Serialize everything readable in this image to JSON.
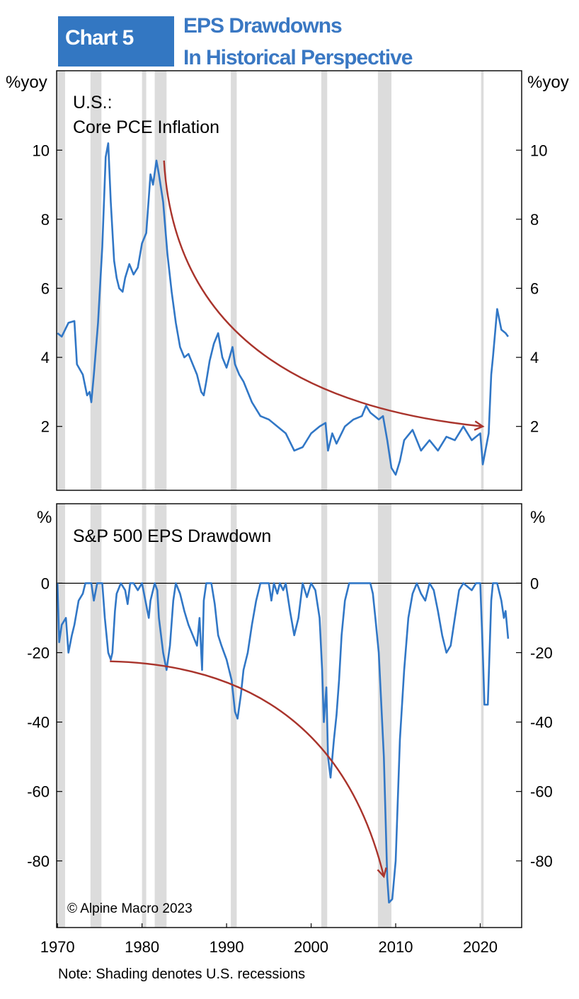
{
  "header": {
    "chart_number": "Chart 5",
    "title_line1": "EPS Drawdowns",
    "title_line2": "In Historical Perspective"
  },
  "chart_data": [
    {
      "type": "line",
      "title": "U.S.:",
      "subtitle": "Core PCE Inflation",
      "ylabel_left": "%yoy",
      "ylabel_right": "%yoy",
      "ylim": [
        0.15,
        12.3
      ],
      "xlim": [
        1969.9,
        2024.9
      ],
      "yticks": [
        2,
        4,
        6,
        8,
        10
      ],
      "ytick_labels": [
        "2",
        "4",
        "6",
        "8",
        "10"
      ],
      "series_color": "#3177c6",
      "x": [
        1970.0,
        1970.5,
        1971.3,
        1972.0,
        1972.3,
        1973.0,
        1973.5,
        1973.8,
        1974.0,
        1974.3,
        1974.8,
        1975.3,
        1975.7,
        1976.0,
        1976.3,
        1976.7,
        1977.0,
        1977.3,
        1977.7,
        1978.0,
        1978.5,
        1979.0,
        1979.5,
        1980.0,
        1980.5,
        1981.0,
        1981.3,
        1981.7,
        1982.0,
        1982.5,
        1983.0,
        1983.5,
        1984.0,
        1984.5,
        1985.0,
        1985.5,
        1986.0,
        1986.5,
        1987.0,
        1987.3,
        1987.6,
        1988.0,
        1988.5,
        1989.0,
        1989.5,
        1990.0,
        1990.7,
        1991.0,
        1991.5,
        1992.0,
        1993.0,
        1994.0,
        1995.0,
        1996.0,
        1997.0,
        1998.0,
        1999.0,
        2000.0,
        2001.0,
        2001.7,
        2002.0,
        2002.5,
        2003.0,
        2004.0,
        2005.0,
        2006.0,
        2006.5,
        2007.0,
        2008.0,
        2008.5,
        2009.0,
        2009.5,
        2010.0,
        2010.5,
        2011.0,
        2012.0,
        2013.0,
        2014.0,
        2015.0,
        2016.0,
        2017.0,
        2018.0,
        2019.0,
        2019.5,
        2020.0,
        2020.3,
        2021.0,
        2021.3,
        2021.5,
        2022.0,
        2022.5,
        2023.0,
        2023.3
      ],
      "values": [
        4.7,
        4.6,
        5.0,
        5.05,
        3.8,
        3.5,
        2.9,
        3.0,
        2.7,
        3.5,
        5.0,
        7.2,
        9.8,
        10.2,
        8.5,
        6.8,
        6.3,
        6.0,
        5.9,
        6.3,
        6.7,
        6.4,
        6.6,
        7.3,
        7.6,
        9.3,
        9.0,
        9.7,
        9.3,
        8.5,
        7.0,
        5.9,
        5.0,
        4.3,
        4.0,
        4.1,
        3.8,
        3.5,
        3.0,
        2.9,
        3.3,
        3.9,
        4.4,
        4.7,
        4.0,
        3.7,
        4.3,
        3.8,
        3.5,
        3.3,
        2.7,
        2.3,
        2.2,
        2.0,
        1.8,
        1.3,
        1.4,
        1.8,
        2.0,
        2.1,
        1.3,
        1.8,
        1.5,
        2.0,
        2.2,
        2.3,
        2.6,
        2.4,
        2.2,
        2.3,
        1.6,
        0.8,
        0.6,
        1.0,
        1.6,
        1.9,
        1.3,
        1.6,
        1.3,
        1.7,
        1.6,
        2.0,
        1.6,
        1.7,
        1.8,
        0.9,
        1.8,
        3.5,
        4.0,
        5.4,
        4.8,
        4.7,
        4.6
      ],
      "annotation_arrow": {
        "from": [
          1982.6,
          9.7
        ],
        "control": [
          1984.2,
          2.9
        ],
        "to": [
          2020.3,
          2.0
        ],
        "color": "#a9342c"
      }
    },
    {
      "type": "line",
      "title": "S&P 500 EPS Drawdown",
      "ylabel_left": "%",
      "ylabel_right": "%",
      "ylim": [
        -99.2,
        22.9
      ],
      "xlim": [
        1969.9,
        2024.9
      ],
      "yticks": [
        0,
        -20,
        -40,
        -60,
        -80
      ],
      "ytick_labels": [
        "0",
        "-20",
        "-40",
        "-60",
        "-80"
      ],
      "xticks": [
        1970,
        1980,
        1990,
        2000,
        2010,
        2020
      ],
      "xtick_labels": [
        "1970",
        "1980",
        "1990",
        "2000",
        "2010",
        "2020"
      ],
      "series_color": "#3177c6",
      "x": [
        1970.0,
        1970.2,
        1970.5,
        1971.0,
        1971.3,
        1971.7,
        1972.0,
        1972.5,
        1973.0,
        1973.3,
        1974.0,
        1974.3,
        1974.7,
        1975.3,
        1975.6,
        1976.0,
        1976.3,
        1976.5,
        1976.8,
        1977.0,
        1977.5,
        1978.0,
        1978.3,
        1978.6,
        1979.0,
        1979.5,
        1980.0,
        1980.4,
        1980.8,
        1981.0,
        1981.5,
        1981.8,
        1982.0,
        1982.5,
        1982.9,
        1983.3,
        1983.7,
        1984.0,
        1984.5,
        1985.0,
        1985.5,
        1986.0,
        1986.5,
        1986.8,
        1987.1,
        1987.3,
        1987.6,
        1988.2,
        1988.6,
        1989.0,
        1989.4,
        1989.7,
        1990.0,
        1990.6,
        1991.0,
        1991.3,
        1991.7,
        1992.0,
        1992.5,
        1993.0,
        1993.5,
        1994.0,
        1995.0,
        1995.3,
        1995.6,
        1996.0,
        1996.3,
        1996.7,
        1997.0,
        1997.5,
        1998.0,
        1998.5,
        1999.0,
        1999.5,
        2000.0,
        2000.5,
        2001.0,
        2001.3,
        2001.5,
        2001.8,
        2002.0,
        2002.3,
        2002.7,
        2003.0,
        2003.3,
        2003.6,
        2004.0,
        2004.5,
        2005.0,
        2006.0,
        2007.0,
        2007.3,
        2007.6,
        2008.0,
        2008.3,
        2008.6,
        2009.0,
        2009.2,
        2009.6,
        2010.0,
        2010.5,
        2011.0,
        2011.5,
        2012.0,
        2012.5,
        2013.0,
        2013.5,
        2014.0,
        2014.5,
        2015.0,
        2015.5,
        2016.0,
        2016.5,
        2017.0,
        2017.5,
        2018.0,
        2019.0,
        2019.5,
        2020.0,
        2020.3,
        2020.5,
        2020.9,
        2021.3,
        2021.5,
        2022.0,
        2022.5,
        2022.8,
        2023.0,
        2023.3
      ],
      "values": [
        0,
        -17,
        -12,
        -10,
        -20,
        -15,
        -12,
        -5,
        -3,
        0,
        0,
        -5,
        0,
        0,
        -10,
        -20,
        -22,
        -20,
        -8,
        -3,
        0,
        -2,
        -6,
        0,
        0,
        -2,
        0,
        -5,
        -10,
        -5,
        0,
        -2,
        -10,
        -20,
        -25,
        -18,
        -5,
        0,
        -3,
        -8,
        -12,
        -15,
        -18,
        -10,
        -25,
        -5,
        0,
        0,
        -6,
        -15,
        -18,
        -20,
        -22,
        -28,
        -37,
        -39,
        -32,
        -25,
        -20,
        -12,
        -5,
        0,
        0,
        -5,
        0,
        -3,
        0,
        -2,
        0,
        -8,
        -15,
        -10,
        0,
        -4,
        0,
        -2,
        -10,
        -25,
        -40,
        -30,
        -50,
        -56,
        -45,
        -38,
        -28,
        -15,
        -5,
        0,
        0,
        0,
        0,
        -3,
        -10,
        -20,
        -35,
        -50,
        -85,
        -92,
        -91,
        -80,
        -45,
        -25,
        -10,
        -3,
        0,
        -3,
        -5,
        0,
        -2,
        -8,
        -15,
        -20,
        -18,
        -10,
        -2,
        0,
        -2,
        0,
        0,
        -20,
        -35,
        -35,
        -5,
        0,
        0,
        -5,
        -10,
        -8,
        -16
      ],
      "annotation_arrow": {
        "from": [
          1976.2,
          -22.5
        ],
        "control": [
          2002.5,
          -24
        ],
        "to": [
          2008.6,
          -84.5
        ],
        "color": "#a9342c"
      },
      "copyright": "© Alpine Macro 2023"
    }
  ],
  "recessions": [
    [
      1969.9,
      1970.9
    ],
    [
      1973.9,
      1975.2
    ],
    [
      1980.0,
      1980.5
    ],
    [
      1981.5,
      1982.9
    ],
    [
      1990.5,
      1991.2
    ],
    [
      2001.2,
      2001.9
    ],
    [
      2007.9,
      2009.5
    ],
    [
      2020.1,
      2020.4
    ]
  ],
  "note": "Note: Shading denotes U.S. recessions"
}
